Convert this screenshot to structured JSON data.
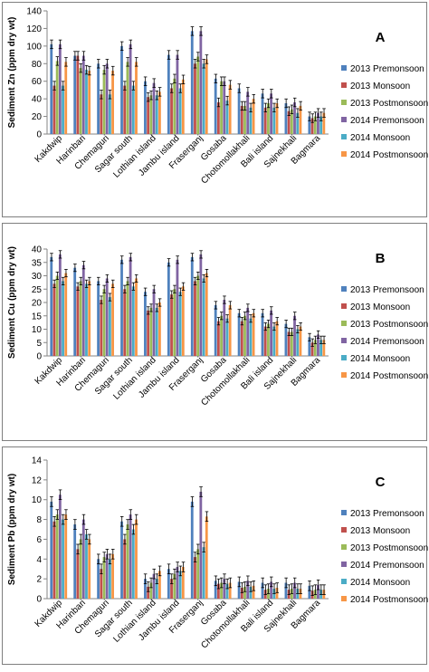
{
  "chart_data": [
    {
      "type": "bar",
      "panel_label": "A",
      "ylabel": "Sediment Zn (ppm dry wt)",
      "ylim": [
        0,
        140
      ],
      "yticks": [
        0,
        20,
        40,
        60,
        80,
        100,
        120,
        140
      ],
      "categories": [
        "Kakdwip",
        "Harinbari",
        "Chemaguri",
        "Sagar south",
        "Lothian island",
        "Jambu island",
        "Fraserganj",
        "Gosaba",
        "Chotomollakhali",
        "Bali island",
        "Sajnekhali",
        "Bagmara"
      ],
      "legend_position": "right",
      "series": [
        {
          "name": "2013 Premonsoon",
          "color": "#4f81bd",
          "values": [
            102,
            89,
            80,
            100,
            60,
            90,
            117,
            63,
            52,
            46,
            35,
            20
          ]
        },
        {
          "name": "2013 Monsoon",
          "color": "#c0504d",
          "values": [
            55,
            89,
            45,
            55,
            42,
            52,
            80,
            36,
            32,
            30,
            26,
            18
          ]
        },
        {
          "name": "2013 Postmonsoon",
          "color": "#9bbb59",
          "values": [
            83,
            75,
            73,
            82,
            44,
            63,
            88,
            60,
            32,
            35,
            28,
            20
          ]
        },
        {
          "name": "2014 Premonsoon",
          "color": "#8064a2",
          "values": [
            102,
            89,
            80,
            102,
            58,
            90,
            117,
            60,
            48,
            46,
            36,
            24
          ]
        },
        {
          "name": "2014 Monsoon",
          "color": "#4bacc6",
          "values": [
            55,
            73,
            45,
            55,
            44,
            52,
            80,
            38,
            30,
            30,
            24,
            20
          ]
        },
        {
          "name": "2014 Postmonsoon",
          "color": "#f79646",
          "values": [
            82,
            72,
            72,
            82,
            48,
            62,
            85,
            56,
            40,
            35,
            32,
            24
          ]
        }
      ]
    },
    {
      "type": "bar",
      "panel_label": "B",
      "ylabel": "Sediment Cu (ppm dry wt)",
      "ylim": [
        0,
        40
      ],
      "yticks": [
        0,
        5,
        10,
        15,
        20,
        25,
        30,
        35,
        40
      ],
      "categories": [
        "Kakdwip",
        "Harinbari",
        "Chemaguri",
        "Sagar south",
        "Lothian island",
        "Jambu island",
        "Fraserganj",
        "Gosaba",
        "Chotomollakhali",
        "Bali island",
        "Sajnekhali",
        "Bagmara"
      ],
      "legend_position": "right",
      "series": [
        {
          "name": "2013 Premonsoon",
          "color": "#4f81bd",
          "values": [
            37,
            33,
            28,
            36,
            24,
            35,
            37,
            19,
            16,
            16,
            12,
            7
          ]
        },
        {
          "name": "2013 Monsoon",
          "color": "#c0504d",
          "values": [
            27,
            26,
            21,
            25,
            17,
            23,
            28,
            13,
            13,
            11,
            9,
            5
          ]
        },
        {
          "name": "2013 Postmonsoon",
          "color": "#9bbb59",
          "values": [
            30,
            28,
            25,
            28,
            18,
            25,
            30,
            15,
            15,
            12,
            9,
            6
          ]
        },
        {
          "name": "2014 Premonsoon",
          "color": "#8064a2",
          "values": [
            38,
            34,
            29,
            37,
            25,
            36,
            38,
            21,
            18,
            17,
            15,
            8
          ]
        },
        {
          "name": "2014 Monsoon",
          "color": "#4bacc6",
          "values": [
            28,
            27,
            22,
            26,
            18,
            24,
            29,
            14,
            14,
            11,
            10,
            6
          ]
        },
        {
          "name": "2014 Postmonsoon",
          "color": "#f79646",
          "values": [
            31,
            28,
            27,
            29,
            20,
            26,
            31,
            19,
            16,
            13,
            11,
            6
          ]
        }
      ]
    },
    {
      "type": "bar",
      "panel_label": "C",
      "ylabel": "Sediment Pb (ppm dry wt)",
      "ylim": [
        0,
        14
      ],
      "yticks": [
        0,
        2,
        4,
        6,
        8,
        10,
        12,
        14
      ],
      "categories": [
        "Kakdwip",
        "Harinbari",
        "Chemaguri",
        "Sagar south",
        "Lothian island",
        "Jambu island",
        "Fraserganj",
        "Gosaba",
        "Chotomollakhali",
        "Bali island",
        "Sajnekhali",
        "Bagmara"
      ],
      "legend_position": "right",
      "series": [
        {
          "name": "2013 Premonsoon",
          "color": "#4f81bd",
          "values": [
            9.8,
            7.5,
            4.0,
            7.8,
            2.0,
            3.0,
            9.8,
            1.8,
            1.7,
            1.6,
            1.6,
            1.3
          ]
        },
        {
          "name": "2013 Monsoon",
          "color": "#c0504d",
          "values": [
            7.8,
            5.0,
            3.0,
            6.0,
            1.2,
            2.0,
            4.2,
            1.5,
            1.1,
            0.9,
            0.9,
            0.8
          ]
        },
        {
          "name": "2013 Postmonsoon",
          "color": "#9bbb59",
          "values": [
            8.5,
            6.0,
            4.2,
            7.5,
            1.6,
            2.5,
            5.0,
            1.6,
            1.2,
            1.0,
            1.0,
            0.9
          ]
        },
        {
          "name": "2014 Premonsoon",
          "color": "#8064a2",
          "values": [
            10.5,
            8.0,
            4.5,
            8.5,
            2.5,
            3.2,
            10.8,
            2.0,
            1.8,
            1.7,
            1.6,
            1.4
          ]
        },
        {
          "name": "2014 Monsoon",
          "color": "#4bacc6",
          "values": [
            8.0,
            6.5,
            4.0,
            7.0,
            2.0,
            2.8,
            5.2,
            1.5,
            1.2,
            1.0,
            1.0,
            0.9
          ]
        },
        {
          "name": "2014 Postmonsoon",
          "color": "#f79646",
          "values": [
            8.5,
            6.0,
            4.5,
            8.0,
            2.8,
            3.2,
            8.3,
            1.6,
            1.3,
            1.1,
            1.0,
            0.9
          ]
        }
      ]
    }
  ]
}
